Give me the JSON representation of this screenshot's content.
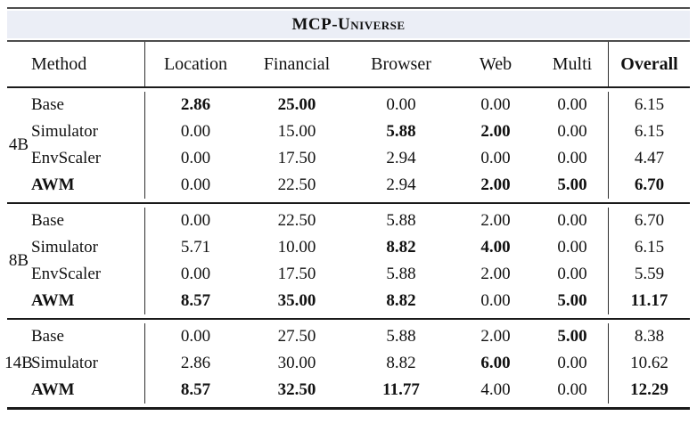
{
  "title": "MCP-Universe",
  "colors": {
    "band_background": "#ebeef6",
    "rule_gray": "#4d4d4d",
    "rule_black": "#1a1a1a",
    "text": "#111111"
  },
  "table": {
    "columns": [
      "Method",
      "Location",
      "Financial",
      "Browser",
      "Web",
      "Multi",
      "Overall"
    ],
    "groups": [
      {
        "label": "4B",
        "rows": [
          {
            "method": "Base",
            "method_bold": false,
            "values": [
              "2.86",
              "25.00",
              "0.00",
              "0.00",
              "0.00",
              "6.15"
            ],
            "bold": [
              true,
              true,
              false,
              false,
              false,
              false
            ]
          },
          {
            "method": "Simulator",
            "method_bold": false,
            "values": [
              "0.00",
              "15.00",
              "5.88",
              "2.00",
              "0.00",
              "6.15"
            ],
            "bold": [
              false,
              false,
              true,
              true,
              false,
              false
            ]
          },
          {
            "method": "EnvScaler",
            "method_bold": false,
            "values": [
              "0.00",
              "17.50",
              "2.94",
              "0.00",
              "0.00",
              "4.47"
            ],
            "bold": [
              false,
              false,
              false,
              false,
              false,
              false
            ]
          },
          {
            "method": "AWM",
            "method_bold": true,
            "values": [
              "0.00",
              "22.50",
              "2.94",
              "2.00",
              "5.00",
              "6.70"
            ],
            "bold": [
              false,
              false,
              false,
              true,
              true,
              true
            ]
          }
        ]
      },
      {
        "label": "8B",
        "rows": [
          {
            "method": "Base",
            "method_bold": false,
            "values": [
              "0.00",
              "22.50",
              "5.88",
              "2.00",
              "0.00",
              "6.70"
            ],
            "bold": [
              false,
              false,
              false,
              false,
              false,
              false
            ]
          },
          {
            "method": "Simulator",
            "method_bold": false,
            "values": [
              "5.71",
              "10.00",
              "8.82",
              "4.00",
              "0.00",
              "6.15"
            ],
            "bold": [
              false,
              false,
              true,
              true,
              false,
              false
            ]
          },
          {
            "method": "EnvScaler",
            "method_bold": false,
            "values": [
              "0.00",
              "17.50",
              "5.88",
              "2.00",
              "0.00",
              "5.59"
            ],
            "bold": [
              false,
              false,
              false,
              false,
              false,
              false
            ]
          },
          {
            "method": "AWM",
            "method_bold": true,
            "values": [
              "8.57",
              "35.00",
              "8.82",
              "0.00",
              "5.00",
              "11.17"
            ],
            "bold": [
              true,
              true,
              true,
              false,
              true,
              true
            ]
          }
        ]
      },
      {
        "label": "14B",
        "rows": [
          {
            "method": "Base",
            "method_bold": false,
            "values": [
              "0.00",
              "27.50",
              "5.88",
              "2.00",
              "5.00",
              "8.38"
            ],
            "bold": [
              false,
              false,
              false,
              false,
              true,
              false
            ]
          },
          {
            "method": "Simulator",
            "method_bold": false,
            "values": [
              "2.86",
              "30.00",
              "8.82",
              "6.00",
              "0.00",
              "10.62"
            ],
            "bold": [
              false,
              false,
              false,
              true,
              false,
              false
            ]
          },
          {
            "method": "AWM",
            "method_bold": true,
            "values": [
              "8.57",
              "32.50",
              "11.77",
              "4.00",
              "0.00",
              "12.29"
            ],
            "bold": [
              true,
              true,
              true,
              false,
              false,
              true
            ]
          }
        ]
      }
    ]
  }
}
